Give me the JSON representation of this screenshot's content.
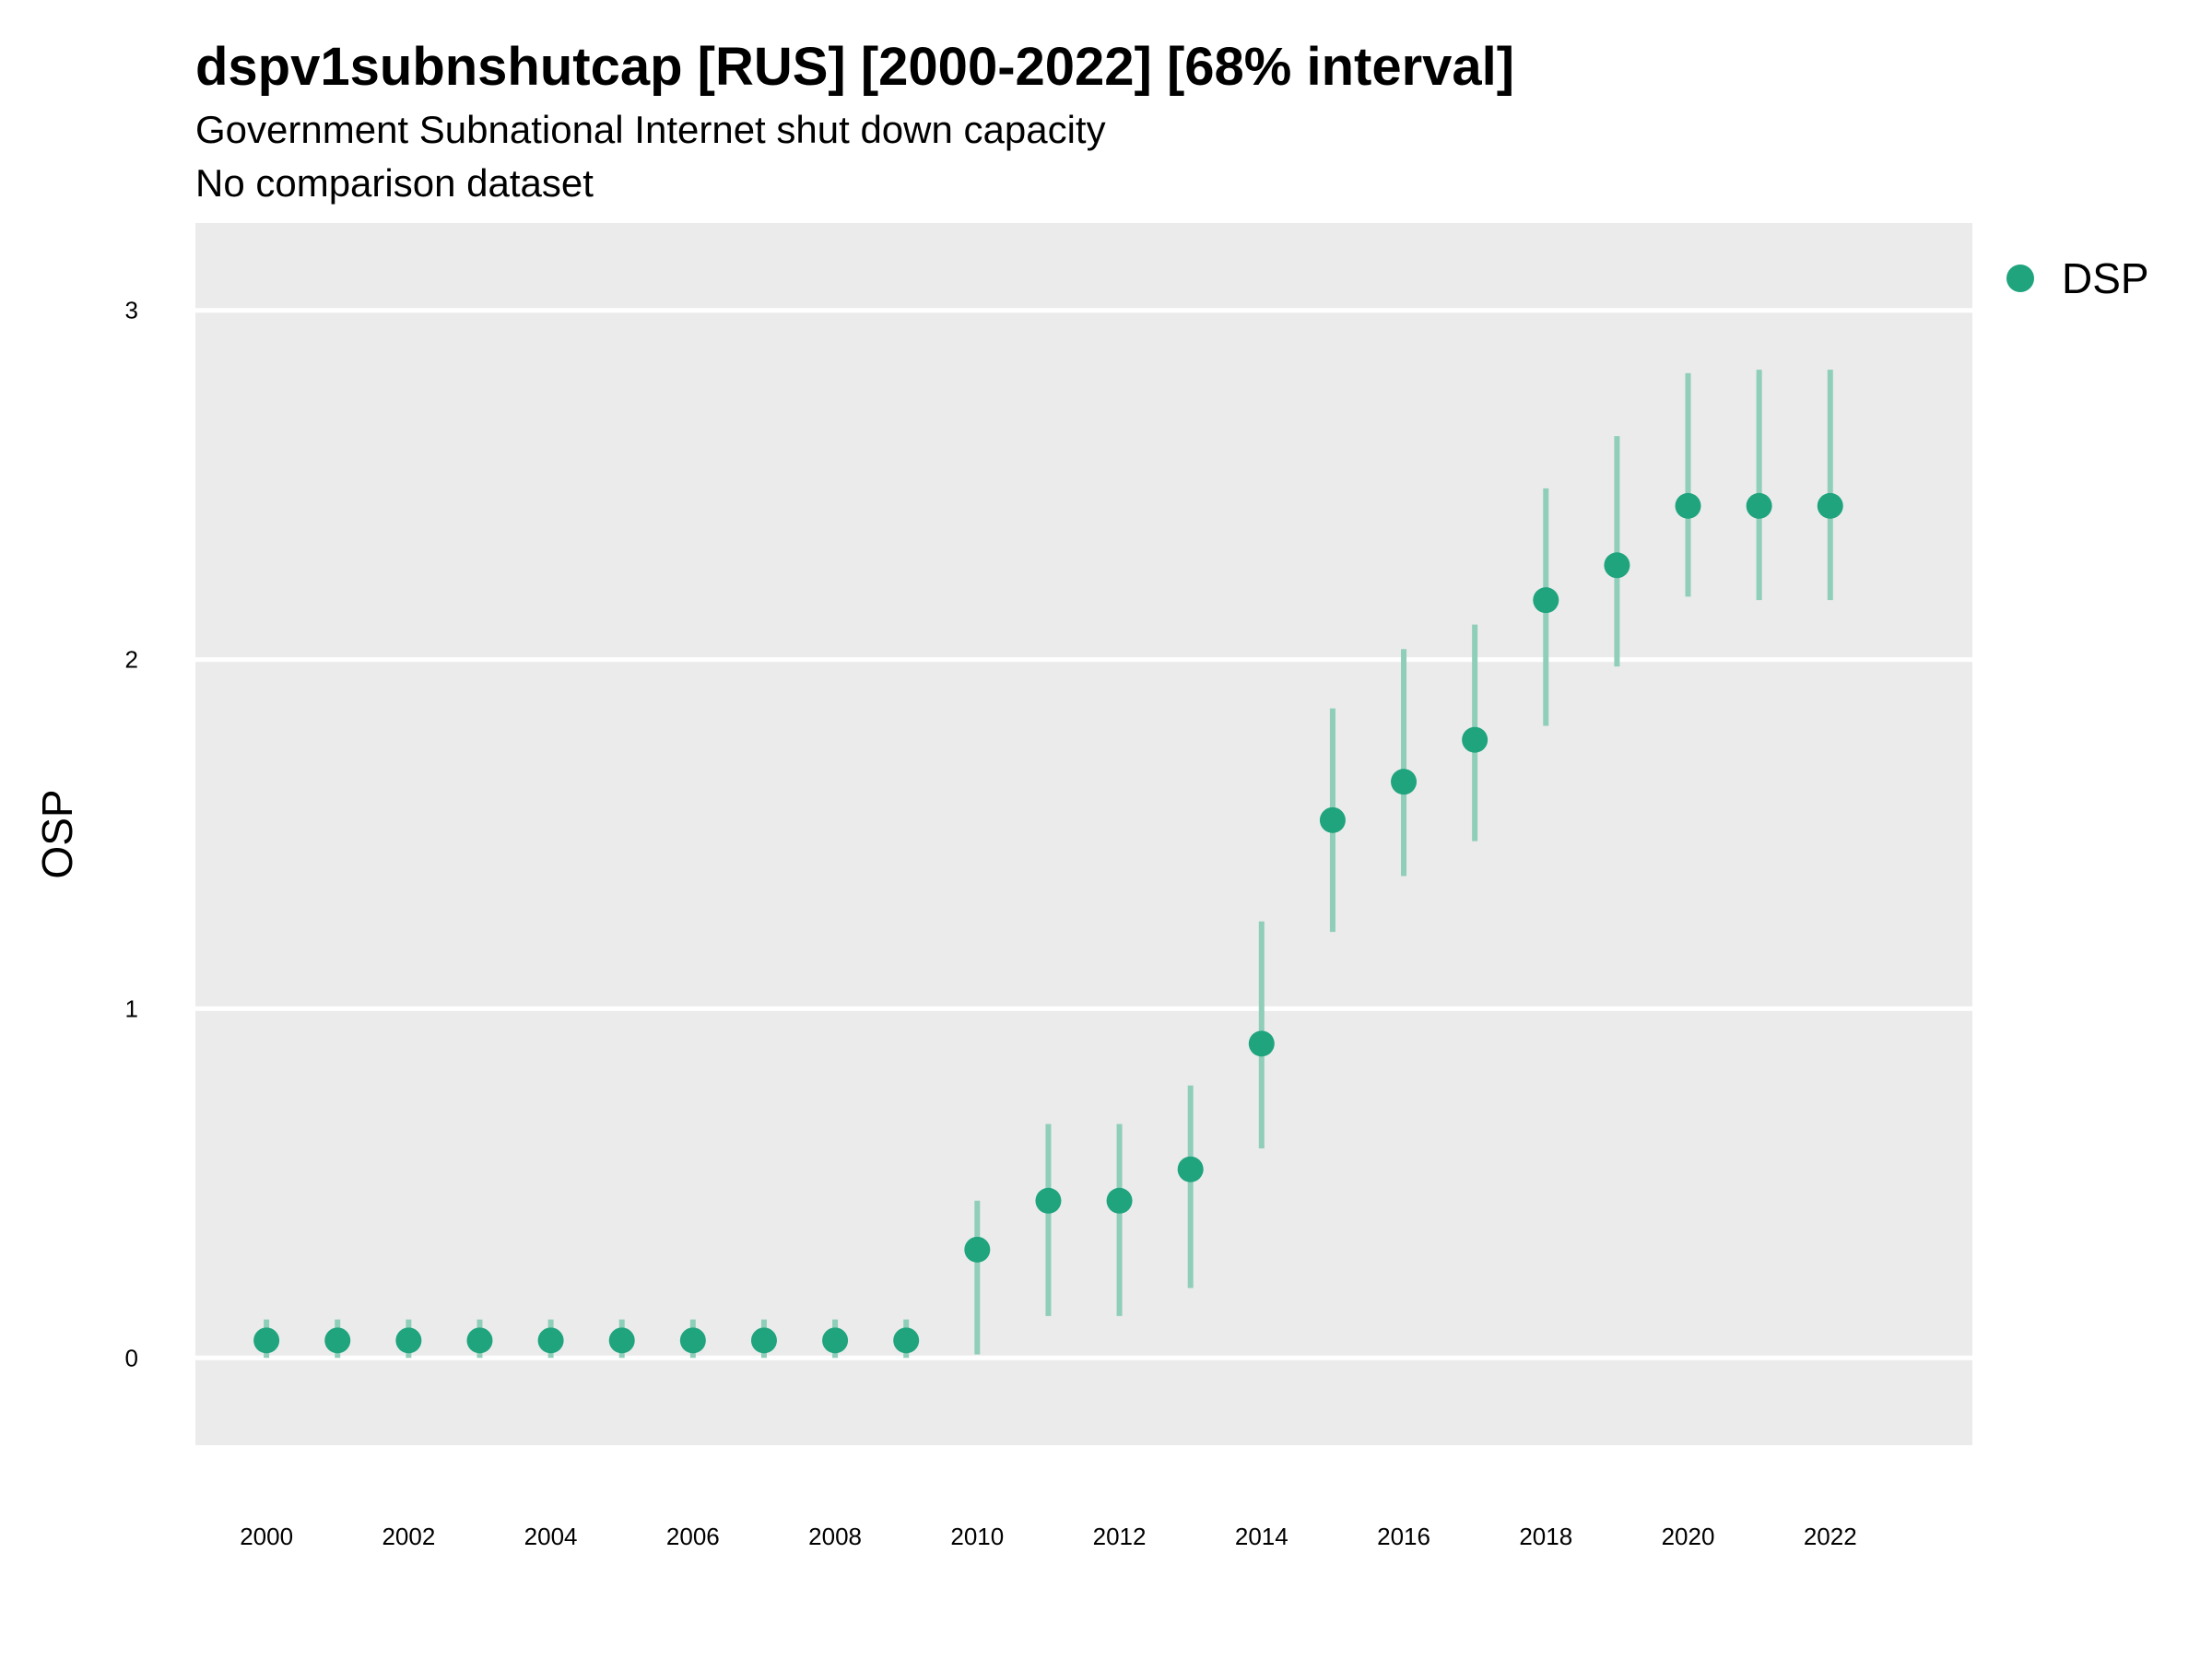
{
  "chart_data": {
    "type": "scatter",
    "title": "dspv1subnshutcap [RUS] [2000-2022] [68% interval]",
    "subtitle": "Government Subnational Internet shut down capacity",
    "subtitle2": "No comparison dataset",
    "xlabel": "",
    "ylabel": "OSP",
    "xlim": [
      1999,
      2024
    ],
    "ylim": [
      -0.25,
      3.25
    ],
    "x_ticks": [
      "2000",
      "2002",
      "2004",
      "2006",
      "2008",
      "2010",
      "2012",
      "2014",
      "2016",
      "2018",
      "2020",
      "2022"
    ],
    "y_ticks": [
      "0",
      "1",
      "2",
      "3"
    ],
    "grid": true,
    "legend_position": "right",
    "colors": {
      "point": "#1fa47d",
      "interval": "#8fceb9",
      "panel": "#ebebeb",
      "grid": "#ffffff"
    },
    "series": [
      {
        "name": "DSP",
        "x": [
          2000,
          2001,
          2002,
          2003,
          2004,
          2005,
          2006,
          2007,
          2008,
          2009,
          2010,
          2011,
          2012,
          2013,
          2014,
          2015,
          2016,
          2017,
          2018,
          2019,
          2020,
          2021,
          2022
        ],
        "y": [
          0.05,
          0.05,
          0.05,
          0.05,
          0.05,
          0.05,
          0.05,
          0.05,
          0.05,
          0.05,
          0.31,
          0.45,
          0.45,
          0.54,
          0.9,
          1.54,
          1.65,
          1.77,
          2.17,
          2.27,
          2.44,
          2.44,
          2.44
        ],
        "lower": [
          0.0,
          0.0,
          0.0,
          0.0,
          0.0,
          0.0,
          0.0,
          0.0,
          0.0,
          0.0,
          0.01,
          0.12,
          0.12,
          0.2,
          0.6,
          1.22,
          1.38,
          1.48,
          1.81,
          1.98,
          2.18,
          2.17,
          2.17
        ],
        "upper": [
          0.11,
          0.11,
          0.11,
          0.11,
          0.11,
          0.11,
          0.11,
          0.11,
          0.11,
          0.11,
          0.45,
          0.67,
          0.67,
          0.78,
          1.25,
          1.86,
          2.03,
          2.1,
          2.49,
          2.64,
          2.82,
          2.83,
          2.83
        ]
      }
    ]
  }
}
